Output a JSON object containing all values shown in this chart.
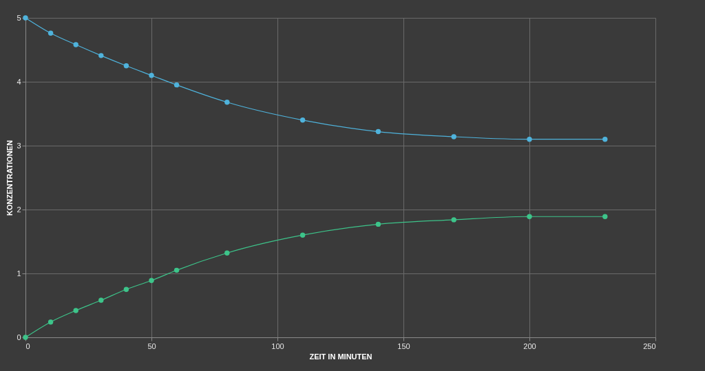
{
  "chart_data": {
    "type": "line",
    "xlabel": "ZEIT IN MINUTEN",
    "ylabel": "KONZENTRATIONEN",
    "x": [
      0,
      10,
      20,
      30,
      40,
      50,
      60,
      80,
      110,
      140,
      170,
      200,
      230
    ],
    "series": [
      {
        "color": "#4fb3dc",
        "values": [
          5,
          4.76,
          4.58,
          4.41,
          4.25,
          4.1,
          3.95,
          3.68,
          3.4,
          3.22,
          3.14,
          3.1,
          3.1
        ]
      },
      {
        "color": "#3dc48a",
        "values": [
          0,
          0.24,
          0.42,
          0.58,
          0.75,
          0.89,
          1.05,
          1.32,
          1.6,
          1.77,
          1.84,
          1.89,
          1.89
        ]
      }
    ],
    "xlim": [
      0,
      250
    ],
    "xticks": [
      0,
      50,
      100,
      150,
      200,
      250
    ],
    "ylim": [
      0,
      5
    ],
    "yticks": [
      0,
      1,
      2,
      3,
      4,
      5
    ],
    "grid": true,
    "marker": "circle",
    "line_style": "solid"
  }
}
